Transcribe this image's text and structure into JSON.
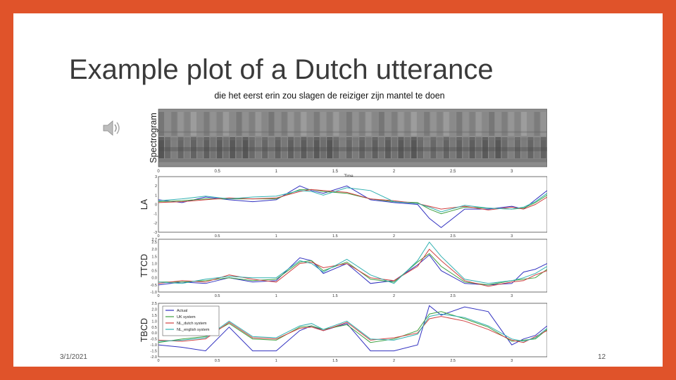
{
  "slide": {
    "title": "Example plot of a Dutch utterance",
    "date": "3/1/2021",
    "page_number": "12",
    "accent_color": "#e0532a"
  },
  "audio": {
    "icon": "speaker-icon"
  },
  "figure": {
    "sentence_title": "die het eerst erin zou slagen de reiziger zijn mantel te doen",
    "panel_labels": [
      "Spectrogram",
      "LA",
      "TTCD",
      "TBCD"
    ],
    "spectrogram_xlabel": "Time",
    "x_ticks": [
      "0",
      "0.5",
      "1",
      "1.5",
      "2",
      "2.5",
      "3"
    ],
    "legend": [
      "Actual",
      "UK system",
      "NL_dutch system",
      "NL_english system"
    ],
    "series_colors": [
      "#3030c0",
      "#40a040",
      "#d04040",
      "#30b0b0"
    ]
  },
  "chart_data": [
    {
      "type": "line",
      "title": "",
      "ylabel": "LA",
      "xlim": [
        0,
        3.3
      ],
      "ylim": [
        -3,
        3
      ],
      "y_ticks": [
        "3",
        "2",
        "1",
        "0",
        "-1",
        "-2",
        "-3"
      ],
      "x": [
        0,
        0.2,
        0.4,
        0.6,
        0.8,
        1.0,
        1.2,
        1.3,
        1.4,
        1.6,
        1.8,
        2.0,
        2.2,
        2.3,
        2.4,
        2.6,
        2.8,
        3.0,
        3.1,
        3.2,
        3.3
      ],
      "series": [
        {
          "name": "Actual",
          "values": [
            0.5,
            0.2,
            0.8,
            0.5,
            0.3,
            0.5,
            2.0,
            1.5,
            1.2,
            2.0,
            0.5,
            0.2,
            0.0,
            -1.5,
            -2.5,
            -0.5,
            -0.5,
            -0.2,
            -0.5,
            0.5,
            1.5
          ]
        },
        {
          "name": "UK system",
          "values": [
            0.3,
            0.4,
            0.6,
            0.6,
            0.6,
            0.6,
            1.6,
            1.6,
            1.4,
            1.2,
            0.6,
            0.3,
            0.2,
            -0.5,
            -1.0,
            -0.3,
            -0.4,
            -0.5,
            -0.4,
            0.2,
            1.0
          ]
        },
        {
          "name": "NL_dutch system",
          "values": [
            0.2,
            0.3,
            0.5,
            0.7,
            0.6,
            0.7,
            1.4,
            1.6,
            1.5,
            1.3,
            0.6,
            0.4,
            0.1,
            -0.2,
            -0.5,
            -0.2,
            -0.6,
            -0.3,
            -0.5,
            0.0,
            0.8
          ]
        },
        {
          "name": "NL_english system",
          "values": [
            0.4,
            0.6,
            0.9,
            0.6,
            0.8,
            0.9,
            1.5,
            1.4,
            1.0,
            1.8,
            1.5,
            0.3,
            0.1,
            -0.3,
            -0.8,
            -0.1,
            -0.4,
            -0.5,
            -0.3,
            0.3,
            1.2
          ]
        }
      ]
    },
    {
      "type": "line",
      "title": "",
      "ylabel": "TTCD",
      "xlim": [
        0,
        3.3
      ],
      "ylim": [
        -1.0,
        2.7
      ],
      "y_ticks": [
        "2.7",
        "2.5",
        "2.0",
        "1.5",
        "1.0",
        "0.5",
        "0.0",
        "-0.5",
        "-1.0"
      ],
      "x": [
        0,
        0.2,
        0.4,
        0.6,
        0.8,
        1.0,
        1.2,
        1.3,
        1.4,
        1.6,
        1.8,
        2.0,
        2.2,
        2.3,
        2.4,
        2.6,
        2.8,
        3.0,
        3.1,
        3.2,
        3.3
      ],
      "series": [
        {
          "name": "Actual",
          "values": [
            -0.5,
            -0.3,
            -0.4,
            0.0,
            -0.3,
            -0.2,
            1.4,
            1.2,
            0.3,
            1.0,
            -0.4,
            -0.2,
            0.9,
            1.6,
            0.5,
            -0.4,
            -0.5,
            -0.4,
            0.4,
            0.6,
            1.0
          ]
        },
        {
          "name": "UK system",
          "values": [
            -0.3,
            -0.3,
            -0.2,
            0.0,
            -0.2,
            -0.1,
            1.1,
            1.2,
            0.5,
            1.1,
            -0.1,
            -0.3,
            1.1,
            1.7,
            0.8,
            -0.3,
            -0.5,
            -0.2,
            -0.1,
            0.0,
            0.6
          ]
        },
        {
          "name": "NL_dutch system",
          "values": [
            -0.4,
            -0.2,
            -0.3,
            0.2,
            -0.1,
            -0.3,
            1.0,
            1.1,
            0.7,
            1.0,
            0.0,
            -0.2,
            0.8,
            2.0,
            1.2,
            -0.2,
            -0.6,
            -0.3,
            -0.2,
            0.2,
            0.5
          ]
        },
        {
          "name": "NL_english system",
          "values": [
            -0.3,
            -0.4,
            -0.1,
            0.1,
            0.0,
            0.0,
            1.2,
            1.0,
            0.4,
            1.3,
            0.2,
            -0.4,
            1.2,
            2.5,
            1.5,
            -0.1,
            -0.4,
            -0.2,
            0.0,
            0.3,
            0.8
          ]
        }
      ]
    },
    {
      "type": "line",
      "title": "",
      "ylabel": "TBCD",
      "xlim": [
        0,
        3.3
      ],
      "ylim": [
        -2.0,
        2.5
      ],
      "y_ticks": [
        "2.5",
        "2.0",
        "1.5",
        "1.0",
        "0.5",
        "0.0",
        "-0.5",
        "-1.0",
        "-1.5",
        "-2.0"
      ],
      "x": [
        0,
        0.2,
        0.4,
        0.6,
        0.8,
        1.0,
        1.2,
        1.3,
        1.4,
        1.6,
        1.8,
        2.0,
        2.2,
        2.3,
        2.4,
        2.6,
        2.8,
        3.0,
        3.1,
        3.2,
        3.3
      ],
      "series": [
        {
          "name": "Actual",
          "values": [
            -1.0,
            -1.2,
            -1.5,
            0.5,
            -1.5,
            -1.5,
            0.2,
            0.6,
            0.2,
            0.8,
            -1.5,
            -1.5,
            -1.0,
            2.3,
            1.5,
            2.2,
            1.8,
            -1.0,
            -0.5,
            -0.2,
            0.6
          ]
        },
        {
          "name": "UK system",
          "values": [
            -0.8,
            -0.5,
            -0.3,
            0.8,
            -0.5,
            -0.6,
            0.5,
            0.6,
            0.3,
            0.7,
            -0.8,
            -0.5,
            0.2,
            1.6,
            1.8,
            1.2,
            0.5,
            -0.7,
            -0.6,
            -0.5,
            0.3
          ]
        },
        {
          "name": "NL_dutch system",
          "values": [
            -0.6,
            -0.7,
            -0.5,
            0.9,
            -0.4,
            -0.5,
            0.4,
            0.5,
            0.2,
            0.9,
            -0.6,
            -0.4,
            0.0,
            1.2,
            1.4,
            1.0,
            0.3,
            -0.6,
            -0.8,
            -0.3,
            0.2
          ]
        },
        {
          "name": "NL_english system",
          "values": [
            -0.7,
            -0.6,
            -0.4,
            1.0,
            -0.3,
            -0.4,
            0.6,
            0.8,
            0.3,
            1.0,
            -0.5,
            -0.6,
            -0.1,
            1.4,
            1.6,
            1.3,
            0.6,
            -0.5,
            -0.7,
            -0.4,
            0.4
          ]
        }
      ]
    }
  ]
}
